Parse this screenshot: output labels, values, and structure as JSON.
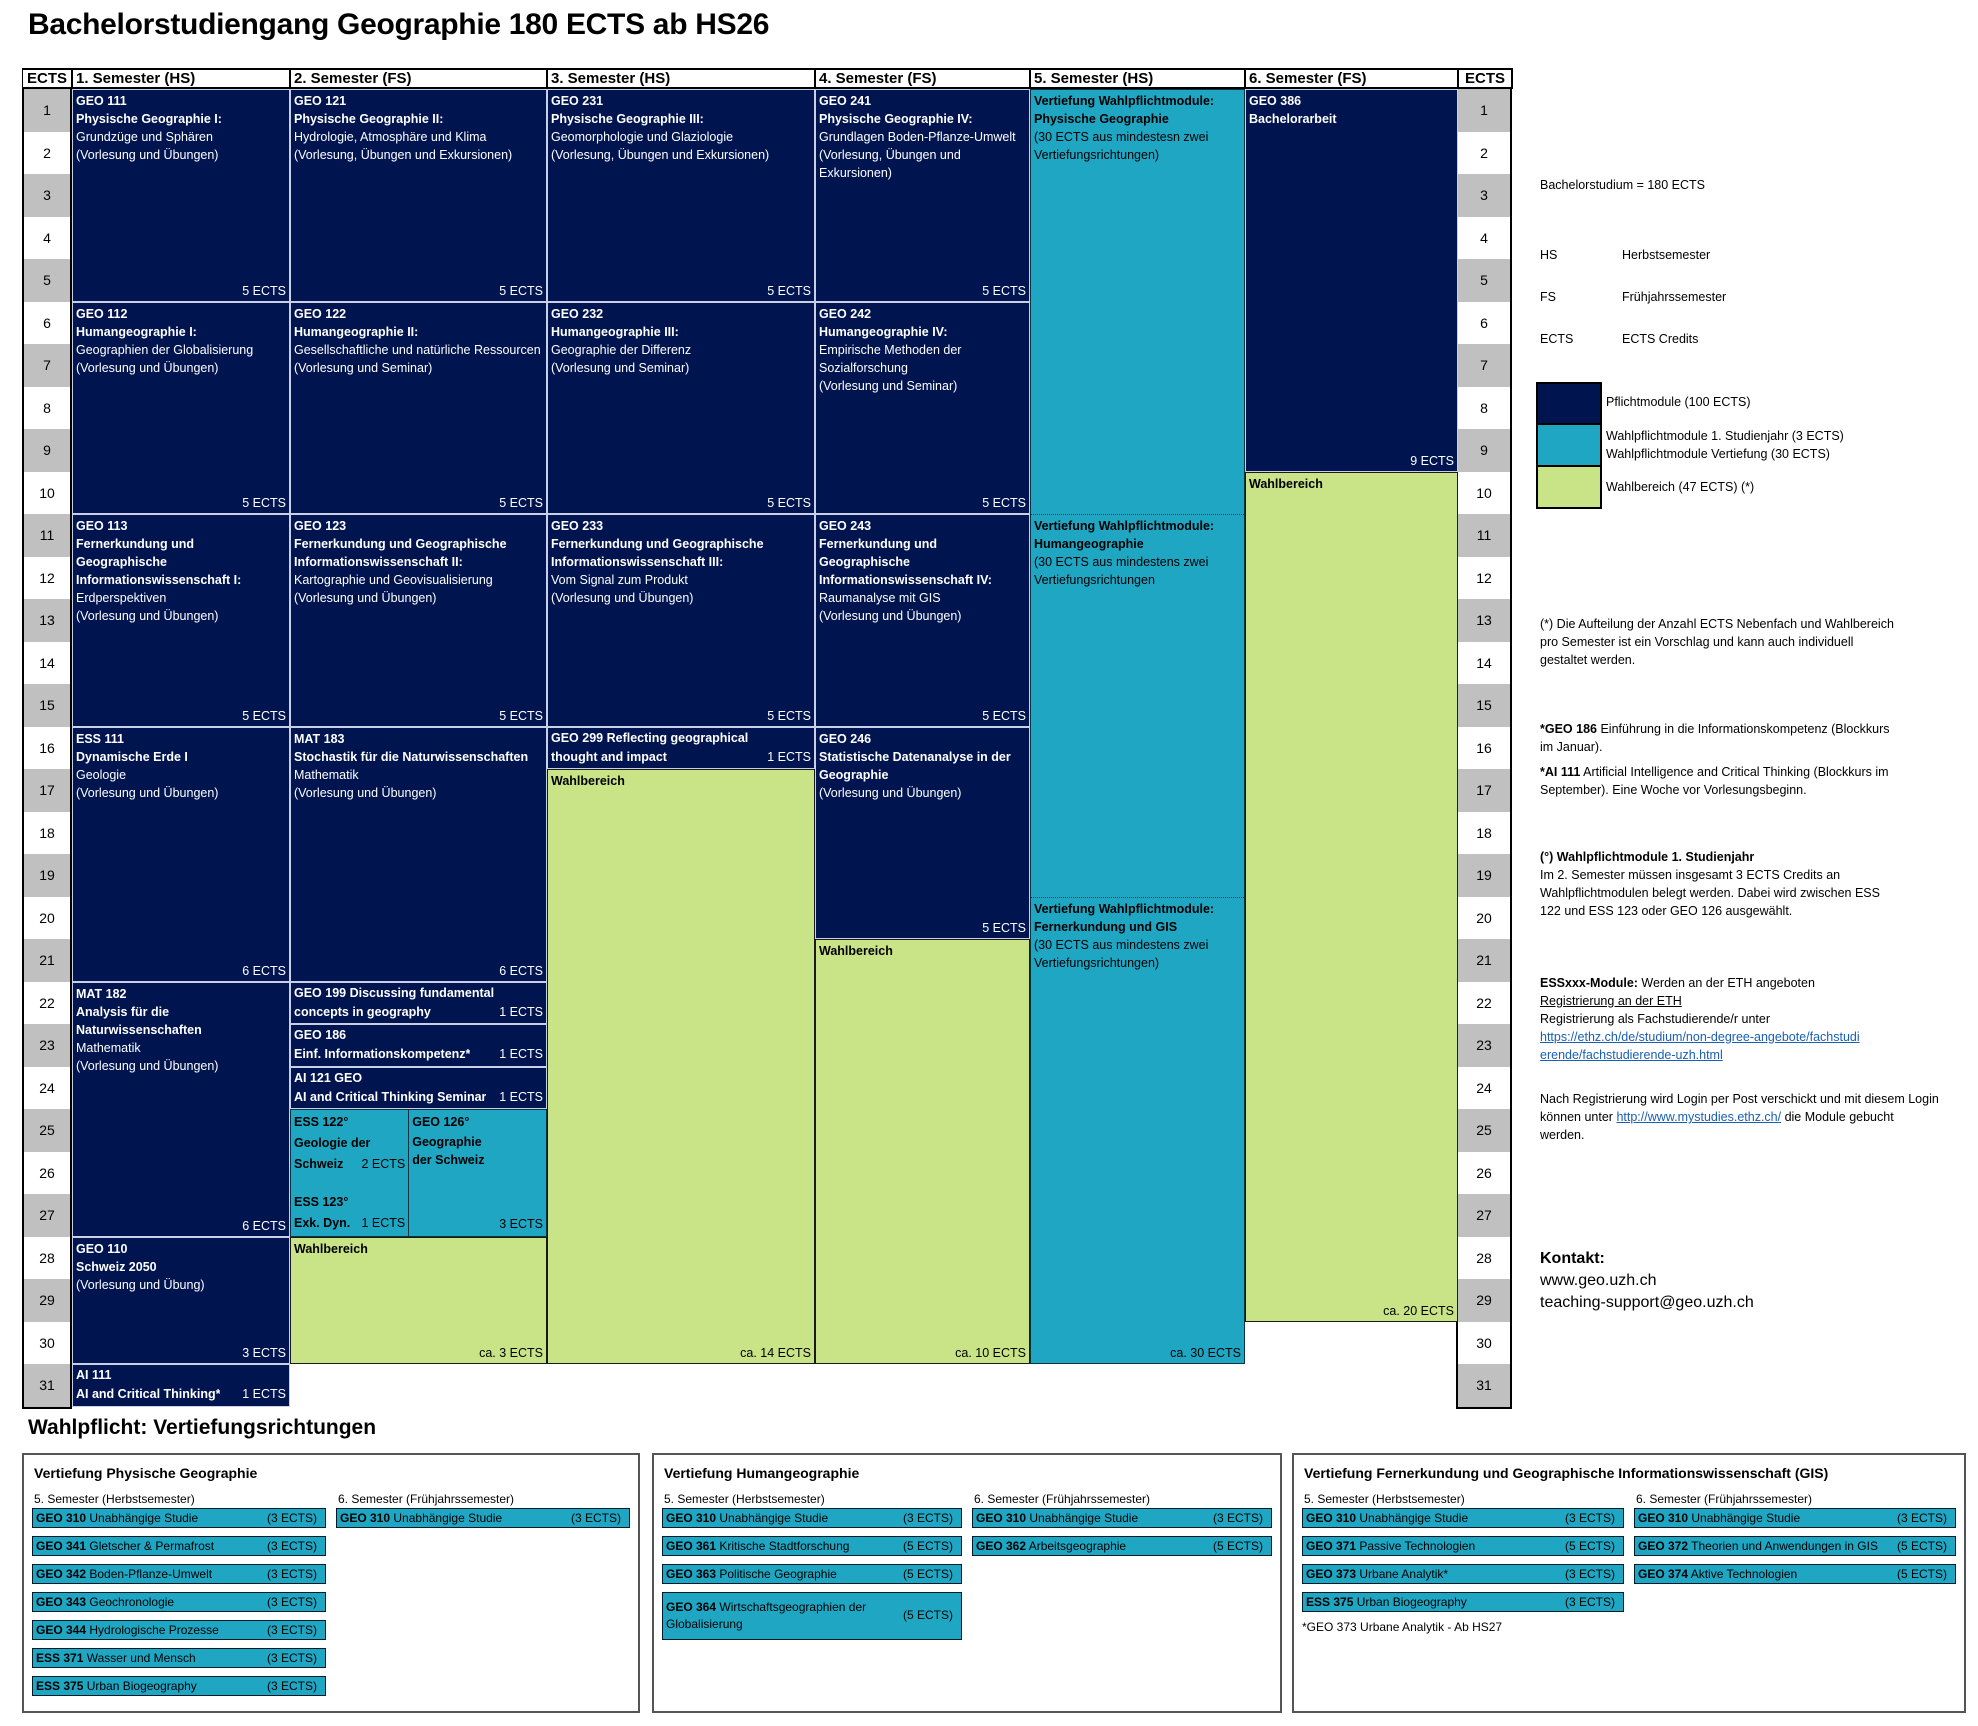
{
  "title": "Bachelorstudiengang Geographie 180 ECTS ab HS26",
  "colors": {
    "pflicht": "#001450",
    "wahlpflicht": "#1fa6c3",
    "wahlbereich": "#c9e387",
    "ects_shade": "#c0c0c0"
  },
  "table": {
    "ects_header": "ECTS",
    "ects_rows": [
      1,
      2,
      3,
      4,
      5,
      6,
      7,
      8,
      9,
      10,
      11,
      12,
      13,
      14,
      15,
      16,
      17,
      18,
      19,
      20,
      21,
      22,
      23,
      24,
      25,
      26,
      27,
      28,
      29,
      30,
      31
    ],
    "semesters": [
      {
        "label": "1. Semester (HS)",
        "blocks": [
          {
            "type": "navy",
            "start": 1,
            "span": 5,
            "code": "GEO 111",
            "title": "Physische Geographie I:",
            "lines": [
              "Grundzüge und Sphären",
              "(Vorlesung und Übungen)"
            ],
            "credits": "5 ECTS"
          },
          {
            "type": "navy",
            "start": 6,
            "span": 5,
            "code": "GEO 112",
            "title": "Humangeographie I:",
            "lines": [
              "Geographien der Globalisierung",
              "(Vorlesung und Übungen)"
            ],
            "credits": "5 ECTS"
          },
          {
            "type": "navy",
            "start": 11,
            "span": 5,
            "code": "GEO 113",
            "title": "Fernerkundung und Geographische Informationswissenschaft I:",
            "lines": [
              "Erdperspektiven",
              "(Vorlesung und Übungen)"
            ],
            "credits": "5 ECTS"
          },
          {
            "type": "navy",
            "start": 16,
            "span": 6,
            "code": "ESS 111",
            "title": "Dynamische Erde I",
            "lines": [
              "Geologie",
              "(Vorlesung und Übungen)"
            ],
            "credits": "6 ECTS"
          },
          {
            "type": "navy",
            "start": 22,
            "span": 6,
            "code": "MAT 182",
            "title": "Analysis für die Naturwissenschaften",
            "lines": [
              "Mathematik",
              "(Vorlesung und Übungen)"
            ],
            "credits": "6 ECTS"
          },
          {
            "type": "navy",
            "start": 28,
            "span": 3,
            "code": "GEO 110",
            "title": "Schweiz 2050",
            "lines": [
              "(Vorlesung und Übung)"
            ],
            "credits": "3 ECTS"
          },
          {
            "type": "navy",
            "start": 31,
            "span": 1,
            "compact": true,
            "code": "AI 111",
            "title": "AI and Critical Thinking*",
            "lines": [],
            "credits": "1 ECTS"
          }
        ]
      },
      {
        "label": "2. Semester (FS)",
        "blocks": [
          {
            "type": "navy",
            "start": 1,
            "span": 5,
            "code": "GEO 121",
            "title": "Physische Geographie II:",
            "lines": [
              "Hydrologie, Atmosphäre und Klima",
              "(Vorlesung, Übungen und Exkursionen)"
            ],
            "credits": "5 ECTS"
          },
          {
            "type": "navy",
            "start": 6,
            "span": 5,
            "code": "GEO 122",
            "title": "Humangeographie II:",
            "lines": [
              "Gesellschaftliche und natürliche Ressourcen",
              "(Vorlesung und Seminar)"
            ],
            "credits": "5 ECTS"
          },
          {
            "type": "navy",
            "start": 11,
            "span": 5,
            "code": "GEO 123",
            "title": "Fernerkundung und Geographische Informationswissenschaft II:",
            "lines": [
              "Kartographie und Geovisualisierung",
              "(Vorlesung und Übungen)"
            ],
            "credits": "5 ECTS"
          },
          {
            "type": "navy",
            "start": 16,
            "span": 6,
            "code": "MAT 183",
            "title": "Stochastik für die Naturwissenschaften",
            "lines": [
              "Mathematik",
              "(Vorlesung und Übungen)"
            ],
            "credits": "6 ECTS"
          },
          {
            "type": "navy",
            "start": 22,
            "span": 1,
            "compact": true,
            "code": "GEO 199 Discussing fundamental",
            "title": "concepts in geography",
            "lines": [],
            "credits": "1 ECTS"
          },
          {
            "type": "navy",
            "start": 23,
            "span": 1,
            "compact": true,
            "code": "GEO 186",
            "title": "Einf. Informationskompetenz*",
            "lines": [],
            "credits": "1 ECTS"
          },
          {
            "type": "navy",
            "start": 24,
            "span": 1,
            "compact": true,
            "code": "AI 121 GEO",
            "title": "AI and Critical Thinking Seminar",
            "lines": [],
            "credits": "1 ECTS"
          },
          {
            "type": "split",
            "start": 25,
            "span": 3,
            "left": {
              "top_code": "ESS 122°",
              "top_title_1": "Geologie der",
              "top_title_2": "Schweiz",
              "top_credits": "2 ECTS",
              "bottom_code": "ESS 123°",
              "bottom_title": "Exk. Dyn.",
              "bottom_credits": "1 ECTS"
            },
            "right": {
              "code": "GEO 126°",
              "title_1": "Geographie",
              "title_2": "der Schweiz",
              "credits": "3 ECTS"
            }
          },
          {
            "type": "green",
            "start": 28,
            "span": 3,
            "code": "Wahlbereich",
            "title": "",
            "lines": [],
            "credits": "ca. 3 ECTS"
          }
        ]
      },
      {
        "label": "3. Semester (HS)",
        "blocks": [
          {
            "type": "navy",
            "start": 1,
            "span": 5,
            "code": "GEO 231",
            "title": "Physische Geographie III:",
            "lines": [
              "Geomorphologie und Glaziologie",
              "(Vorlesung, Übungen und Exkursionen)"
            ],
            "credits": "5 ECTS"
          },
          {
            "type": "navy",
            "start": 6,
            "span": 5,
            "code": "GEO 232",
            "title": "Humangeographie III:",
            "lines": [
              "Geographie der Differenz",
              "(Vorlesung und Seminar)"
            ],
            "credits": "5 ECTS"
          },
          {
            "type": "navy",
            "start": 11,
            "span": 5,
            "code": "GEO 233",
            "title": "Fernerkundung und Geographische Informationswissenschaft  III:",
            "lines": [
              "Vom Signal zum Produkt",
              "(Vorlesung und Übungen)"
            ],
            "credits": "5 ECTS"
          },
          {
            "type": "navy",
            "start": 16,
            "span": 1,
            "compact": true,
            "code": "GEO 299 Reflecting geographical",
            "title": "thought and impact",
            "lines": [],
            "credits": "1 ECTS"
          },
          {
            "type": "green",
            "start": 17,
            "span": 14,
            "code": "Wahlbereich",
            "title": "",
            "lines": [],
            "credits": "ca. 14 ECTS"
          }
        ]
      },
      {
        "label": "4. Semester (FS)",
        "blocks": [
          {
            "type": "navy",
            "start": 1,
            "span": 5,
            "code": "GEO 241",
            "title": "Physische Geographie IV:",
            "lines": [
              "Grundlagen Boden-Pflanze-Umwelt",
              "(Vorlesung, Übungen und Exkursionen)"
            ],
            "credits": "5 ECTS"
          },
          {
            "type": "navy",
            "start": 6,
            "span": 5,
            "code": "GEO 242",
            "title": "Humangeographie IV:",
            "lines": [
              "Empirische Methoden der Sozialforschung",
              "(Vorlesung und Seminar)"
            ],
            "credits": "5 ECTS"
          },
          {
            "type": "navy",
            "start": 11,
            "span": 5,
            "code": "GEO 243",
            "title": "Fernerkundung und Geographische Informationswissenschaft IV:",
            "lines": [
              "Raumanalyse mit GIS",
              "(Vorlesung und Übungen)"
            ],
            "credits": "5 ECTS"
          },
          {
            "type": "navy",
            "start": 16,
            "span": 5,
            "code": "GEO 246",
            "title": "Statistische Datenanalyse in der Geographie",
            "lines": [
              "(Vorlesung und Übungen)"
            ],
            "credits": "5 ECTS"
          },
          {
            "type": "green",
            "start": 21,
            "span": 10,
            "code": "Wahlbereich",
            "title": "",
            "lines": [],
            "credits": "ca. 10 ECTS"
          }
        ]
      },
      {
        "label": "5. Semester (HS)",
        "blocks": [
          {
            "type": "cyan-multi",
            "start": 1,
            "span": 30,
            "credits": "ca. 30 ECTS",
            "segments": [
              {
                "at": 1,
                "title_1": "Vertiefung Wahlpflichtmodule:",
                "title_2": "Physische Geographie",
                "note": "(30 ECTS aus mindestesn zwei Vertiefungsrichtungen)"
              },
              {
                "at": 11,
                "title_1": "Vertiefung Wahlpflichtmodule:",
                "title_2": "Humangeographie",
                "note": "(30 ECTS aus mindestens zwei Vertiefungsrichtungen"
              },
              {
                "at": 20,
                "title_1": "Vertiefung Wahlpflichtmodule:",
                "title_2": "Fernerkundung und GIS",
                "note": "(30 ECTS aus mindestens zwei Vertiefungsrichtungen)"
              }
            ]
          }
        ]
      },
      {
        "label": "6. Semester (FS)",
        "blocks": [
          {
            "type": "navy",
            "start": 1,
            "span": 9,
            "code": "GEO 386",
            "title": "Bachelorarbeit",
            "lines": [],
            "credits": "9 ECTS"
          },
          {
            "type": "green",
            "start": 10,
            "span": 20,
            "code": "Wahlbereich",
            "title": "",
            "lines": [],
            "credits": "ca. 20 ECTS"
          }
        ]
      }
    ]
  },
  "legend": {
    "total": "Bachelorstudium = 180 ECTS",
    "abbreviations": [
      {
        "key": "HS",
        "value": "Herbstsemester"
      },
      {
        "key": "FS",
        "value": "Frühjahrssemester"
      },
      {
        "key": "ECTS",
        "value": "ECTS Credits"
      }
    ],
    "swatches": [
      {
        "color": "#001450",
        "labels": [
          "Pflichtmodule (100 ECTS)"
        ]
      },
      {
        "color": "#1fa6c3",
        "labels": [
          "Wahlpflichtmodule 1. Studienjahr (3 ECTS)",
          "Wahlpflichtmodule Vertiefung (30 ECTS)"
        ]
      },
      {
        "color": "#c9e387",
        "labels": [
          "Wahlbereich (47 ECTS) (*)"
        ]
      }
    ],
    "note_star": "(*) Die Aufteilung der Anzahl ECTS Nebenfach und Wahlbereich pro Semester ist ein Vorschlag und kann auch individuell gestaltet werden.",
    "note_geo186_bold": "*GEO 186",
    "note_geo186_text": " Einführung in die Informationskompetenz (Blockkurs im Januar).",
    "note_ai111_bold": "*AI 111",
    "note_ai111_text": " Artificial Intelligence and Critical Thinking (Blockkurs im September). Eine Woche vor Vorlesungsbeginn.",
    "note_wp_heading_prefix": "(°) ",
    "note_wp_heading": "Wahlpflichtmodule 1. Studienjahr",
    "note_wp_text": "Im 2. Semester müssen insgesamt 3 ECTS Credits an Wahlpflichtmodulen belegt werden. Dabei wird  zwischen ESS 122 und ESS 123 oder GEO 126 ausgewählt.",
    "ess_bold": "ESSxxx-Module:",
    "ess_text": " Werden an der ETH angeboten",
    "ess_reg_heading": "Registrierung an der ETH",
    "ess_reg_text": "Registrierung als Fachstudierende/r unter",
    "ess_reg_link": "https://ethz.ch/de/studium/non-degree-angebote/fachstudierende/fachstudierende-uzh.html",
    "login_text_1": "Nach Registrierung wird Login per Post verschickt und mit diesem Login können unter ",
    "login_link": "http://www.mystudies.ethz.ch/",
    "login_text_2": " die Module gebucht werden."
  },
  "contact": {
    "heading": "Kontakt:",
    "website": "www.geo.uzh.ch",
    "email": "teaching-support@geo.uzh.ch"
  },
  "vertiefungen": {
    "heading": "Wahlpflicht: Vertiefungsrichtungen",
    "sem5_label": "5. Semester (Herbstsemester)",
    "sem6_label": "6. Semester (Frühjahrssemester)",
    "boxes": [
      {
        "title": "Vertiefung Physische Geographie",
        "sem5": [
          {
            "code": "GEO 310",
            "name": "Unabhängige Studie",
            "ects": "(3 ECTS)"
          },
          {
            "code": "GEO 341",
            "name": "Gletscher & Permafrost",
            "ects": "(3 ECTS)"
          },
          {
            "code": "GEO 342",
            "name": "Boden-Pflanze-Umwelt",
            "ects": "(3 ECTS)"
          },
          {
            "code": "GEO 343",
            "name": "Geochronologie",
            "ects": "(3 ECTS)"
          },
          {
            "code": "GEO 344",
            "name": "Hydrologische Prozesse",
            "ects": "(3 ECTS)"
          },
          {
            "code": "ESS 371",
            "name": "Wasser und Mensch",
            "ects": "(3 ECTS)"
          },
          {
            "code": "ESS 375",
            "name": "Urban Biogeography",
            "ects": "(3 ECTS)"
          }
        ],
        "sem6": [
          {
            "code": "GEO 310",
            "name": "Unabhängige Studie",
            "ects": "(3 ECTS)"
          }
        ],
        "note": ""
      },
      {
        "title": "Vertiefung Humangeographie",
        "sem5": [
          {
            "code": "GEO 310",
            "name": "Unabhängige Studie",
            "ects": "(3 ECTS)"
          },
          {
            "code": "GEO 361",
            "name": "Kritische Stadtforschung",
            "ects": "(5 ECTS)"
          },
          {
            "code": "GEO 363",
            "name": "Politische Geographie",
            "ects": "(5 ECTS)"
          },
          {
            "code": "GEO 364",
            "name": "Wirtschaftsgeographien  der Globalisierung",
            "ects": "(5 ECTS)",
            "tall": true
          }
        ],
        "sem6": [
          {
            "code": "GEO 310",
            "name": "Unabhängige Studie",
            "ects": "(3 ECTS)"
          },
          {
            "code": "GEO 362",
            "name": "Arbeitsgeographie",
            "ects": "(5 ECTS)"
          }
        ],
        "note": ""
      },
      {
        "title": "Vertiefung Fernerkundung und Geographische Informationswissenschaft (GIS)",
        "sem5": [
          {
            "code": "GEO 310",
            "name": "Unabhängige Studie",
            "ects": "(3 ECTS)"
          },
          {
            "code": "GEO 371",
            "name": "Passive Technologien",
            "ects": "(5 ECTS)"
          },
          {
            "code": "GEO 373",
            "name": "Urbane Analytik*",
            "ects": "(3 ECTS)"
          },
          {
            "code": "ESS 375",
            "name": "Urban Biogeography",
            "ects": "(3 ECTS)"
          }
        ],
        "sem6": [
          {
            "code": "GEO 310",
            "name": "Unabhängige Studie",
            "ects": "(3 ECTS)"
          },
          {
            "code": "GEO 372",
            "name": "Theorien und Anwendungen in GIS",
            "ects": "(5 ECTS)"
          },
          {
            "code": "GEO 374",
            "name": "Aktive Technologien",
            "ects": "(5 ECTS)"
          }
        ],
        "note": "*GEO 373 Urbane Analytik - Ab HS27"
      }
    ]
  }
}
